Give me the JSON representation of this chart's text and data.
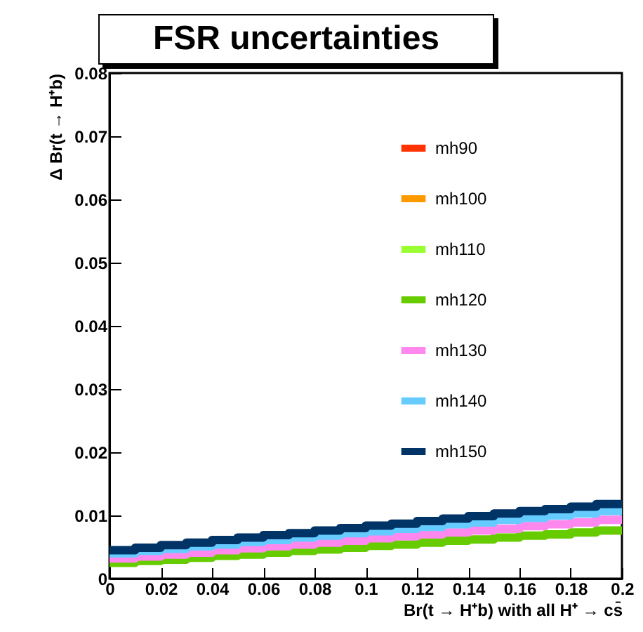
{
  "chart_data": {
    "type": "step",
    "title": "FSR uncertainties",
    "xlabel": "Br(t → H⁺b) with all H⁺ → cs̄",
    "ylabel": "Δ Br(t → H⁺b)",
    "x": [
      0,
      0.01,
      0.02,
      0.03,
      0.04,
      0.05,
      0.06,
      0.07,
      0.08,
      0.09,
      0.1,
      0.11,
      0.12,
      0.13,
      0.14,
      0.15,
      0.16,
      0.17,
      0.18,
      0.19,
      0.2
    ],
    "series": [
      {
        "name": "mh90",
        "color": "#ff3300",
        "values": [
          null,
          null,
          null,
          null,
          null,
          null,
          null,
          null,
          null,
          null,
          null,
          null,
          null,
          null,
          null,
          null,
          null,
          null,
          null,
          null,
          null
        ]
      },
      {
        "name": "mh100",
        "color": "#ff9900",
        "values": [
          null,
          null,
          null,
          null,
          null,
          null,
          null,
          null,
          null,
          null,
          null,
          null,
          null,
          null,
          null,
          null,
          null,
          null,
          null,
          null,
          null
        ]
      },
      {
        "name": "mh110",
        "color": "#99ff33",
        "values": [
          null,
          null,
          null,
          null,
          null,
          null,
          null,
          null,
          null,
          null,
          null,
          null,
          null,
          null,
          null,
          null,
          null,
          null,
          null,
          null,
          null
        ]
      },
      {
        "name": "mh120",
        "color": "#66cc00",
        "values": [
          0.0025,
          0.0028,
          0.003,
          0.0033,
          0.0036,
          0.0038,
          0.0041,
          0.0044,
          0.0046,
          0.0049,
          0.0052,
          0.0054,
          0.0057,
          0.006,
          0.0062,
          0.0065,
          0.0068,
          0.007,
          0.0073,
          0.0076,
          0.0076
        ]
      },
      {
        "name": "mh130",
        "color": "#ff88ee",
        "values": [
          0.0032,
          0.0035,
          0.0038,
          0.0041,
          0.0045,
          0.0048,
          0.0051,
          0.0054,
          0.0057,
          0.006,
          0.0064,
          0.0067,
          0.007,
          0.0073,
          0.0076,
          0.0079,
          0.0083,
          0.0086,
          0.0089,
          0.0093,
          0.0093
        ]
      },
      {
        "name": "mh140",
        "color": "#66ccff",
        "values": [
          0.004,
          0.0044,
          0.0047,
          0.0051,
          0.0054,
          0.0058,
          0.0061,
          0.0065,
          0.0068,
          0.0072,
          0.0075,
          0.0079,
          0.0082,
          0.0086,
          0.0089,
          0.0093,
          0.0096,
          0.01,
          0.0103,
          0.0107,
          0.0107
        ]
      },
      {
        "name": "mh150",
        "color": "#003366",
        "values": [
          0.0045,
          0.0049,
          0.0053,
          0.0057,
          0.0061,
          0.0065,
          0.0069,
          0.0072,
          0.0076,
          0.008,
          0.0084,
          0.0087,
          0.0091,
          0.0095,
          0.0099,
          0.0103,
          0.0107,
          0.011,
          0.0114,
          0.0118,
          0.0118
        ]
      }
    ],
    "xlim": [
      0,
      0.2
    ],
    "xticks": [
      0,
      0.02,
      0.04,
      0.06,
      0.08,
      0.1,
      0.12,
      0.14,
      0.16,
      0.18,
      0.2
    ],
    "ylim": [
      0,
      0.08
    ],
    "yticks": [
      0,
      0.01,
      0.02,
      0.03,
      0.04,
      0.05,
      0.06,
      0.07,
      0.08
    ],
    "grid": false,
    "legend": "top right"
  }
}
